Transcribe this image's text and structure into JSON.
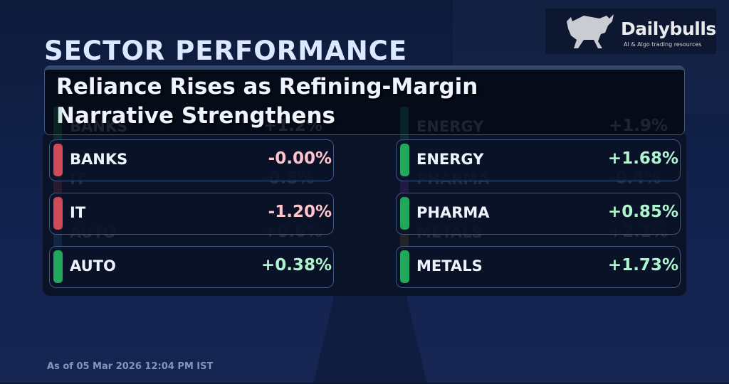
{
  "brand": {
    "name": "Dailybulls",
    "tagline": "AI & Algo trading resources"
  },
  "title": "SECTOR PERFORMANCE",
  "headline": {
    "line1": "Reliance Rises as Refining-Margin",
    "line2": "Narrative Strengthens"
  },
  "sectors_left": [
    {
      "name": "BANKS",
      "value": "-0.00%",
      "color": "#d04a58",
      "value_color": "#ffc4cc"
    },
    {
      "name": "IT",
      "value": "-1.20%",
      "color": "#d04a58",
      "value_color": "#ffc4cc"
    },
    {
      "name": "AUTO",
      "value": "+0.38%",
      "color": "#22a85c",
      "value_color": "#aef5cf"
    }
  ],
  "sectors_right": [
    {
      "name": "ENERGY",
      "value": "+1.68%",
      "color": "#22a85c",
      "value_color": "#aef5cf"
    },
    {
      "name": "PHARMA",
      "value": "+0.85%",
      "color": "#22a85c",
      "value_color": "#aef5cf"
    },
    {
      "name": "METALS",
      "value": "+1.73%",
      "color": "#22a85c",
      "value_color": "#aef5cf"
    }
  ],
  "background_sectors_left": [
    {
      "name": "BANKS",
      "value": "+1.2%",
      "color": "#22a85c"
    },
    {
      "name": "IT",
      "value": "-0.8%",
      "color": "#d04a58"
    },
    {
      "name": "AUTO",
      "value": "+0.6%",
      "color": "#3a8fd0"
    }
  ],
  "background_sectors_right": [
    {
      "name": "ENERGY",
      "value": "+1.9%",
      "color": "#1fa88a"
    },
    {
      "name": "PHARMA",
      "value": "-0.4%",
      "color": "#9a4ad0"
    },
    {
      "name": "METALS",
      "value": "+2.1%",
      "color": "#b07a3a"
    }
  ],
  "footer": "As of 05 Mar 2026 12:04 PM IST"
}
